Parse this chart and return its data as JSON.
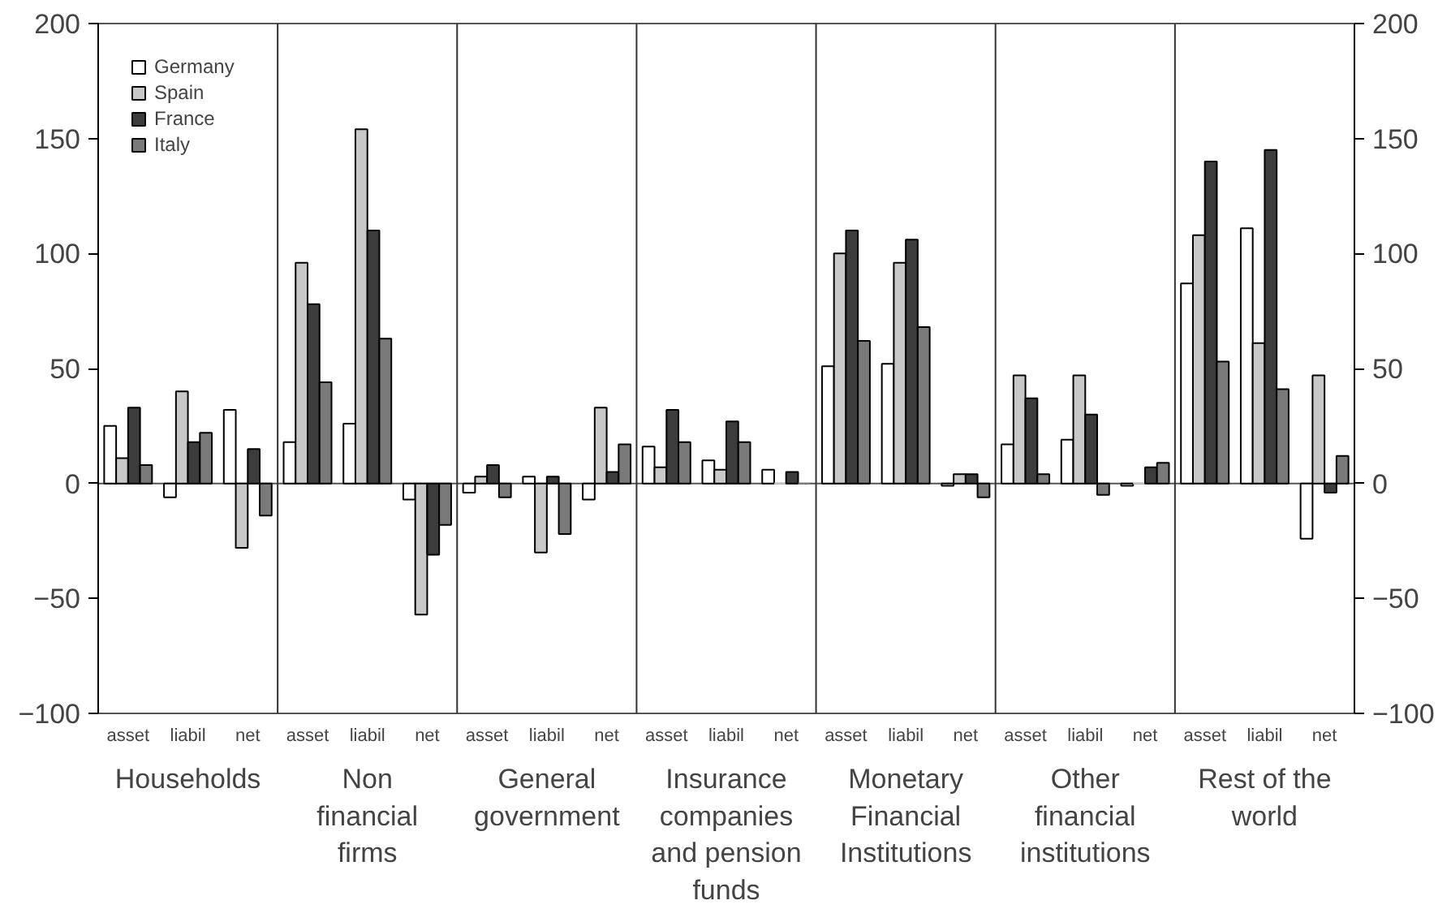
{
  "chart_data": {
    "type": "bar",
    "categories": [
      "asset",
      "liabil",
      "net",
      "asset",
      "liabil",
      "net",
      "asset",
      "liabil",
      "net",
      "asset",
      "liabil",
      "net",
      "asset",
      "liabil",
      "net",
      "asset",
      "liabil",
      "net",
      "asset",
      "liabil",
      "net"
    ],
    "series": [
      {
        "name": "Germany",
        "color": "#ffffff",
        "values": [
          25,
          -6,
          32,
          18,
          26,
          -7,
          -4,
          3,
          -7,
          16,
          10,
          6,
          51,
          52,
          -1,
          17,
          19,
          -1,
          87,
          111,
          -24
        ]
      },
      {
        "name": "Spain",
        "color": "#c8c8c8",
        "values": [
          11,
          40,
          -28,
          96,
          154,
          -57,
          3,
          -30,
          33,
          7,
          6,
          0,
          100,
          96,
          4,
          47,
          47,
          0,
          108,
          61,
          47
        ]
      },
      {
        "name": "France",
        "color": "#3c3c3c",
        "values": [
          33,
          18,
          15,
          78,
          110,
          -31,
          8,
          3,
          5,
          32,
          27,
          5,
          110,
          106,
          4,
          37,
          30,
          7,
          140,
          145,
          -4
        ]
      },
      {
        "name": "Italy",
        "color": "#7a7a7a",
        "values": [
          8,
          22,
          -14,
          44,
          63,
          -18,
          -6,
          -22,
          17,
          18,
          18,
          0,
          62,
          68,
          -6,
          4,
          -5,
          9,
          53,
          41,
          12
        ]
      }
    ],
    "ylim": [
      -100,
      200
    ],
    "yticks": [
      -100,
      -50,
      0,
      50,
      100,
      150,
      200
    ],
    "y2lim": [
      -100,
      200
    ],
    "y2ticks": [
      -100,
      -50,
      0,
      50,
      100,
      150,
      200
    ],
    "annotations": [
      "Households",
      "Non financial firms",
      "General government",
      "Insurance companies and pension funds",
      "Monetary Financial Institutions",
      "Other financial institutions",
      "Rest of the world"
    ],
    "legend": "top left",
    "grid": false
  }
}
